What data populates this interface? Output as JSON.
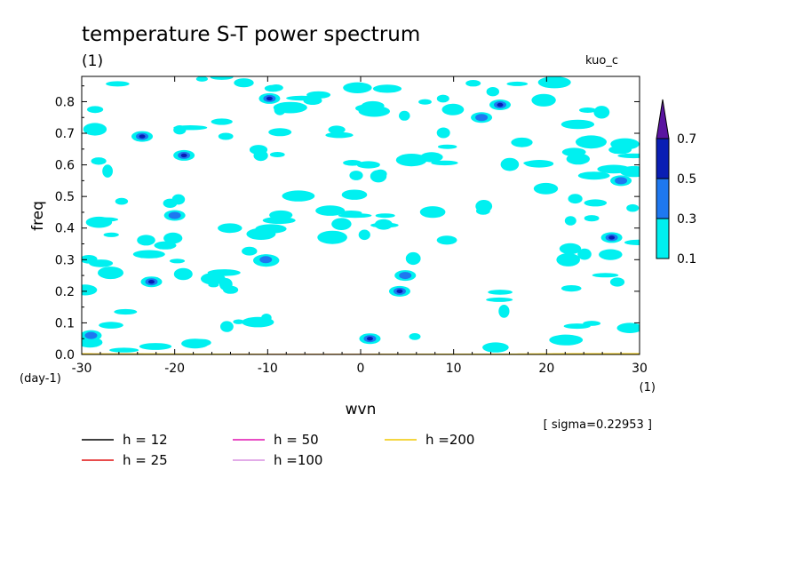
{
  "chart_data": {
    "type": "contour",
    "title": "temperature S-T power spectrum",
    "units_label": "(1)",
    "model_label": "kuo_c",
    "xlabel": "wvn",
    "ylabel": "freq",
    "xunit": "(1)",
    "yunit": "(day-1)",
    "xlim": [
      -30,
      30
    ],
    "ylim": [
      0,
      0.88
    ],
    "xticks": [
      -30,
      -20,
      -10,
      0,
      10,
      20,
      30
    ],
    "xtick_labels": [
      "-30",
      "-20",
      "-10",
      "0",
      "10",
      "20",
      "30"
    ],
    "yticks": [
      0,
      0.1,
      0.2,
      0.3,
      0.4,
      0.5,
      0.6,
      0.7,
      0.8
    ],
    "ytick_labels": [
      "0.0",
      "0.1",
      "0.2",
      "0.3",
      "0.4",
      "0.5",
      "0.6",
      "0.7",
      "0.8"
    ],
    "sigma_text": "[ sigma=0.22953 ]",
    "colorbar": {
      "levels": [
        0.1,
        0.3,
        0.5,
        0.7
      ],
      "labels": [
        "0.1",
        "0.3",
        "0.5",
        "0.7"
      ],
      "colors": [
        "#00f0f0",
        "#1e78f0",
        "#0a1eb4",
        "#5a14a0"
      ]
    },
    "dispersion_curves": [
      {
        "label": "h = 12",
        "h": 12,
        "color": "#000000"
      },
      {
        "label": "h = 25",
        "h": 25,
        "color": "#e01010"
      },
      {
        "label": "h = 50",
        "h": 50,
        "color": "#e010b0"
      },
      {
        "label": "h =100",
        "h": 100,
        "color": "#d890e0"
      },
      {
        "label": "h =200",
        "h": 200,
        "color": "#f0c800"
      }
    ],
    "contour_patches": [
      {
        "x": 4.2,
        "y": 0.2,
        "level": 0.5
      },
      {
        "x": 15.0,
        "y": 0.79,
        "level": 0.5
      },
      {
        "x": 27.0,
        "y": 0.37,
        "level": 0.5
      },
      {
        "x": -19.0,
        "y": 0.63,
        "level": 0.5
      },
      {
        "x": -23.5,
        "y": 0.69,
        "level": 0.5
      },
      {
        "x": -22.5,
        "y": 0.23,
        "level": 0.5
      },
      {
        "x": 1.0,
        "y": 0.05,
        "level": 0.5
      },
      {
        "x": -9.8,
        "y": 0.81,
        "level": 0.5
      },
      {
        "x": -10.2,
        "y": 0.3,
        "level": 0.3
      },
      {
        "x": 4.8,
        "y": 0.25,
        "level": 0.3
      },
      {
        "x": -20.0,
        "y": 0.44,
        "level": 0.3
      },
      {
        "x": -29.0,
        "y": 0.06,
        "level": 0.3
      },
      {
        "x": 13.0,
        "y": 0.75,
        "level": 0.3
      },
      {
        "x": 28.0,
        "y": 0.55,
        "level": 0.3
      }
    ]
  }
}
